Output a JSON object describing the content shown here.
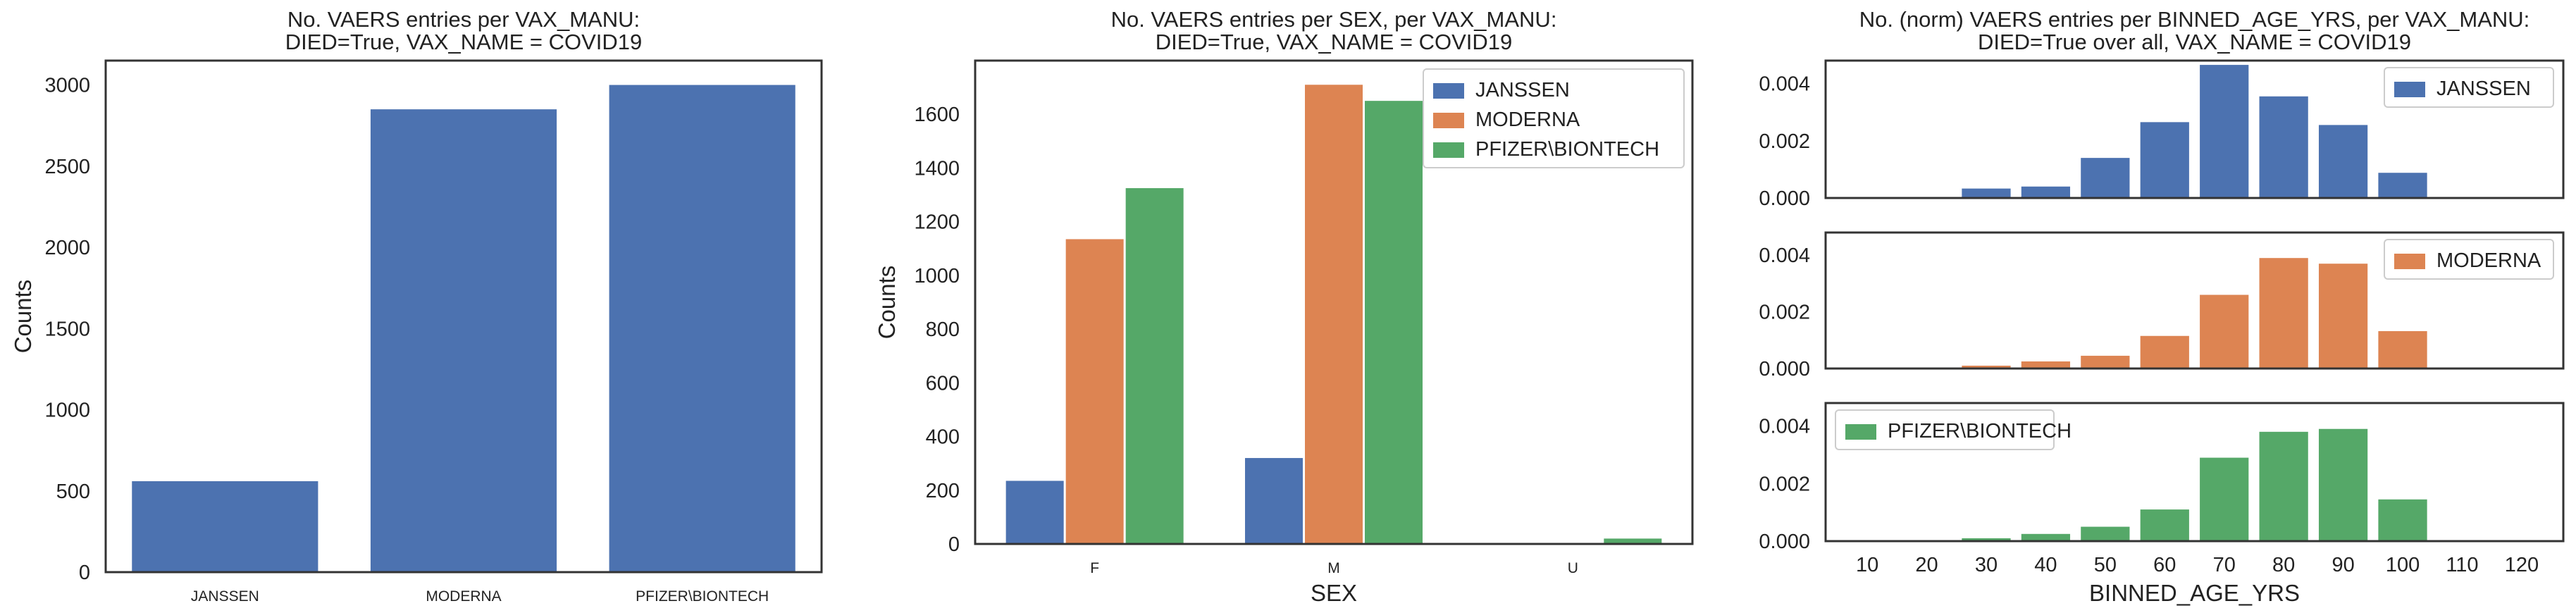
{
  "colors": {
    "janssen": "#4c72b0",
    "moderna": "#dd8452",
    "pfizer": "#55a868",
    "axis": "#333333",
    "text": "#222222"
  },
  "chart_data": [
    {
      "type": "bar",
      "title": "No. VAERS entries per VAX_MANU:",
      "subtitle": "DIED=True, VAX_NAME = COVID19",
      "xlabel": "",
      "ylabel": "Counts",
      "categories": [
        "JANSSEN",
        "MODERNA",
        "PFIZER\\BIONTECH"
      ],
      "values": [
        560,
        2850,
        3000
      ],
      "ylim": [
        0,
        3150
      ],
      "yticks": [
        0,
        500,
        1000,
        1500,
        2000,
        2500,
        3000
      ],
      "grid": false
    },
    {
      "type": "bar",
      "title": "No. VAERS entries per SEX, per VAX_MANU:",
      "subtitle": "DIED=True, VAX_NAME = COVID19",
      "xlabel": "SEX",
      "ylabel": "Counts",
      "categories": [
        "F",
        "M",
        "U"
      ],
      "series": [
        {
          "name": "JANSSEN",
          "values": [
            235,
            320,
            2
          ]
        },
        {
          "name": "MODERNA",
          "values": [
            1135,
            1710,
            3
          ]
        },
        {
          "name": "PFIZER\\BIONTECH",
          "values": [
            1325,
            1650,
            20
          ]
        }
      ],
      "ylim": [
        0,
        1800
      ],
      "yticks": [
        0,
        200,
        400,
        600,
        800,
        1000,
        1200,
        1400,
        1600
      ],
      "legend": "top-right",
      "grid": false
    },
    {
      "type": "bar",
      "title": "No. (norm) VAERS entries per BINNED_AGE_YRS, per VAX_MANU:",
      "subtitle": "DIED=True over all, VAX_NAME = COVID19",
      "xlabel": "BINNED_AGE_YRS",
      "ylabel": "",
      "categories": [
        10,
        20,
        30,
        40,
        50,
        60,
        70,
        80,
        90,
        100,
        110,
        120
      ],
      "ylim": [
        0,
        0.0048
      ],
      "yticks": [
        "0.000",
        "0.002",
        "0.004"
      ],
      "panels": [
        {
          "name": "JANSSEN",
          "legend": "top-right",
          "values": [
            0,
            0,
            0.00033,
            0.0004,
            0.0014,
            0.00265,
            0.00465,
            0.00355,
            0.00255,
            0.00088,
            0,
            0
          ]
        },
        {
          "name": "MODERNA",
          "legend": "top-right",
          "values": [
            0,
            0,
            0.0001,
            0.00025,
            0.00045,
            0.00115,
            0.0026,
            0.0039,
            0.0037,
            0.00132,
            0,
            0
          ]
        },
        {
          "name": "PFIZER\\BIONTECH",
          "legend": "top-left",
          "values": [
            0,
            0,
            0.0001,
            0.00025,
            0.0005,
            0.0011,
            0.0029,
            0.0038,
            0.0039,
            0.00145,
            0,
            0
          ]
        }
      ],
      "grid": false
    }
  ]
}
